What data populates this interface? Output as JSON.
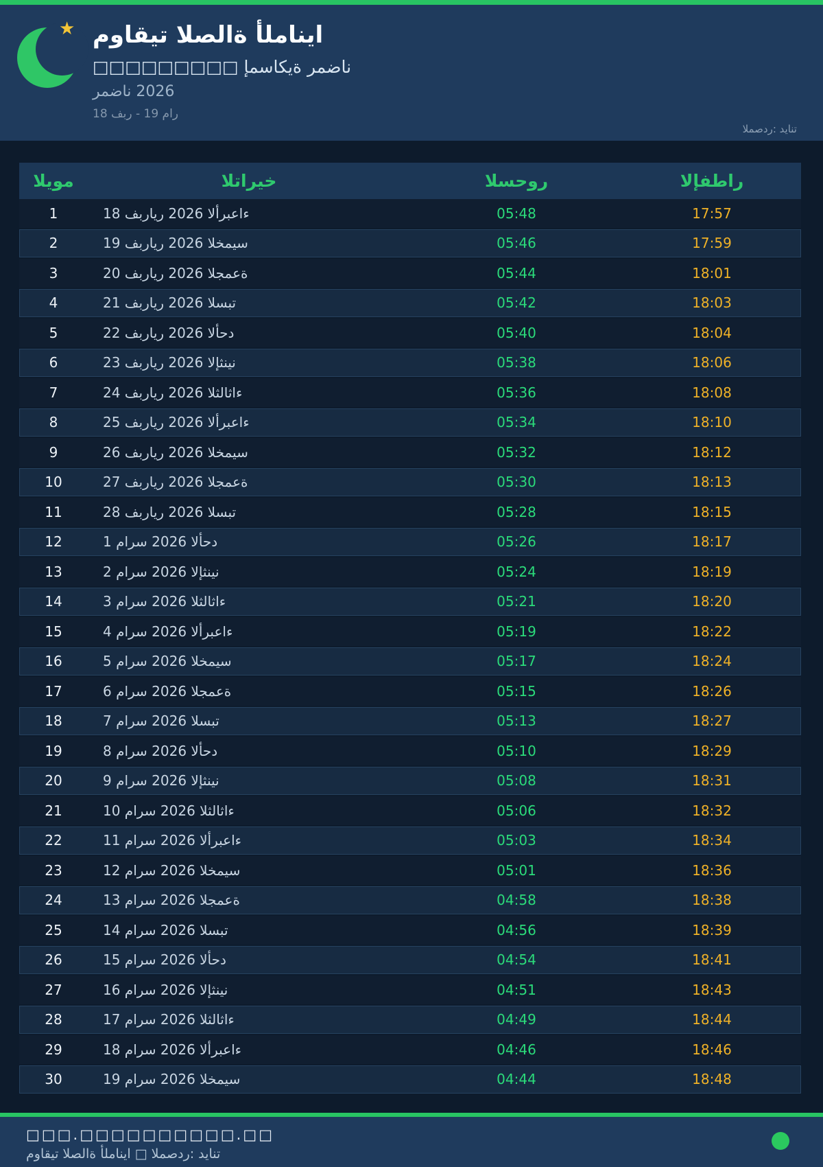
{
  "header": {
    "title": "مواقيت الصلاة ألمانيا",
    "subtitle": "□□□□□□□□□ إمساكية رمضان",
    "season": "رمضان 2026",
    "date_range": "18 فبر - 19 مار",
    "source": "المصدر: ديانت"
  },
  "table": {
    "columns": [
      "اليوم",
      "التاريخ",
      "السحور",
      "الإفطار"
    ],
    "rows": [
      {
        "day": 1,
        "date": "18 فبراير 2026 الأربعاء",
        "suhoor": "05:48",
        "iftar": "17:57"
      },
      {
        "day": 2,
        "date": "19 فبراير 2026 الخميس",
        "suhoor": "05:46",
        "iftar": "17:59"
      },
      {
        "day": 3,
        "date": "20 فبراير 2026 الجمعة",
        "suhoor": "05:44",
        "iftar": "18:01"
      },
      {
        "day": 4,
        "date": "21 فبراير 2026 السبت",
        "suhoor": "05:42",
        "iftar": "18:03"
      },
      {
        "day": 5,
        "date": "22 فبراير 2026 الأحد",
        "suhoor": "05:40",
        "iftar": "18:04"
      },
      {
        "day": 6,
        "date": "23 فبراير 2026 الإثنين",
        "suhoor": "05:38",
        "iftar": "18:06"
      },
      {
        "day": 7,
        "date": "24 فبراير 2026 الثلاثاء",
        "suhoor": "05:36",
        "iftar": "18:08"
      },
      {
        "day": 8,
        "date": "25 فبراير 2026 الأربعاء",
        "suhoor": "05:34",
        "iftar": "18:10"
      },
      {
        "day": 9,
        "date": "26 فبراير 2026 الخميس",
        "suhoor": "05:32",
        "iftar": "18:12"
      },
      {
        "day": 10,
        "date": "27 فبراير 2026 الجمعة",
        "suhoor": "05:30",
        "iftar": "18:13"
      },
      {
        "day": 11,
        "date": "28 فبراير 2026 السبت",
        "suhoor": "05:28",
        "iftar": "18:15"
      },
      {
        "day": 12,
        "date": "1 مارس 2026 الأحد",
        "suhoor": "05:26",
        "iftar": "18:17"
      },
      {
        "day": 13,
        "date": "2 مارس 2026 الإثنين",
        "suhoor": "05:24",
        "iftar": "18:19"
      },
      {
        "day": 14,
        "date": "3 مارس 2026 الثلاثاء",
        "suhoor": "05:21",
        "iftar": "18:20"
      },
      {
        "day": 15,
        "date": "4 مارس 2026 الأربعاء",
        "suhoor": "05:19",
        "iftar": "18:22"
      },
      {
        "day": 16,
        "date": "5 مارس 2026 الخميس",
        "suhoor": "05:17",
        "iftar": "18:24"
      },
      {
        "day": 17,
        "date": "6 مارس 2026 الجمعة",
        "suhoor": "05:15",
        "iftar": "18:26"
      },
      {
        "day": 18,
        "date": "7 مارس 2026 السبت",
        "suhoor": "05:13",
        "iftar": "18:27"
      },
      {
        "day": 19,
        "date": "8 مارس 2026 الأحد",
        "suhoor": "05:10",
        "iftar": "18:29"
      },
      {
        "day": 20,
        "date": "9 مارس 2026 الإثنين",
        "suhoor": "05:08",
        "iftar": "18:31"
      },
      {
        "day": 21,
        "date": "10 مارس 2026 الثلاثاء",
        "suhoor": "05:06",
        "iftar": "18:32"
      },
      {
        "day": 22,
        "date": "11 مارس 2026 الأربعاء",
        "suhoor": "05:03",
        "iftar": "18:34"
      },
      {
        "day": 23,
        "date": "12 مارس 2026 الخميس",
        "suhoor": "05:01",
        "iftar": "18:36"
      },
      {
        "day": 24,
        "date": "13 مارس 2026 الجمعة",
        "suhoor": "04:58",
        "iftar": "18:38"
      },
      {
        "day": 25,
        "date": "14 مارس 2026 السبت",
        "suhoor": "04:56",
        "iftar": "18:39"
      },
      {
        "day": 26,
        "date": "15 مارس 2026 الأحد",
        "suhoor": "04:54",
        "iftar": "18:41"
      },
      {
        "day": 27,
        "date": "16 مارس 2026 الإثنين",
        "suhoor": "04:51",
        "iftar": "18:43"
      },
      {
        "day": 28,
        "date": "17 مارس 2026 الثلاثاء",
        "suhoor": "04:49",
        "iftar": "18:44"
      },
      {
        "day": 29,
        "date": "18 مارس 2026 الأربعاء",
        "suhoor": "04:46",
        "iftar": "18:46"
      },
      {
        "day": 30,
        "date": "19 مارس 2026 الخميس",
        "suhoor": "04:44",
        "iftar": "18:48"
      }
    ]
  },
  "footer": {
    "url": "□□□.□□□□□□□□□□.□□",
    "caption": "مواقيت الصلاة ألمانيا □ المصدر: ديانت"
  },
  "icons": {
    "moon": "crescent-moon",
    "star": "star",
    "star_glyph": "★"
  },
  "colors": {
    "accent_green": "#28C463",
    "suhoor_green": "#2BDB7A",
    "iftar_amber": "#F0B227",
    "header_navy": "#1F3B5D",
    "page_navy": "#0D1B2C",
    "table_header_green": "#2FC96E"
  }
}
